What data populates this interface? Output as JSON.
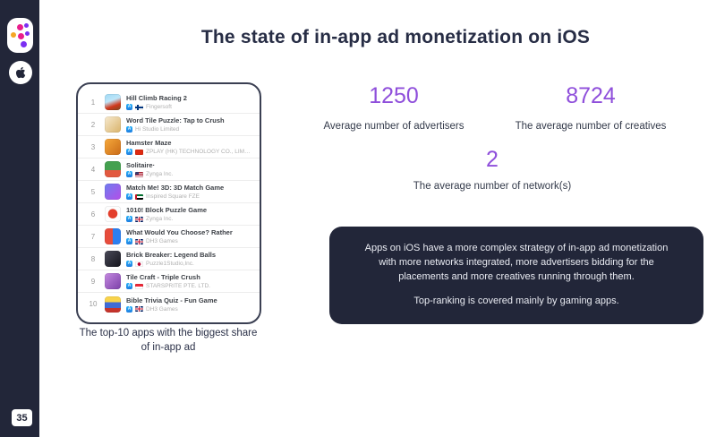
{
  "sidebar": {
    "page_number": "35"
  },
  "header": {
    "title": "The state of in-app ad monetization on iOS"
  },
  "app_list": {
    "caption": "The top-10 apps with the biggest share of in-app ad",
    "items": [
      {
        "rank": "1",
        "name": "Hill Climb Racing 2",
        "publisher": "Fingersoft",
        "flag": "finland",
        "icon_bg": "linear-gradient(160deg,#9ed8f4 0%,#bfe6f9 40%,#d0381b 70%,#7a4a21 100%)"
      },
      {
        "rank": "2",
        "name": "Word Tile Puzzle: Tap to Crush",
        "publisher": "Hi Studio Limited",
        "flag": "",
        "icon_bg": "linear-gradient(135deg,#f7ead0,#d9b36a)"
      },
      {
        "rank": "3",
        "name": "Hamster Maze",
        "publisher": "ZPLAY (HK) TECHNOLOGY CO., LIMITED",
        "flag": "china",
        "icon_bg": "linear-gradient(135deg,#f6a93c,#c96a16)"
      },
      {
        "rank": "4",
        "name": "Solitaire·",
        "publisher": "Zynga Inc.",
        "flag": "usa",
        "icon_bg": "linear-gradient(180deg,#44a04f 55%,#e2593f 55%)"
      },
      {
        "rank": "5",
        "name": "Match Me! 3D: 3D Match Game",
        "publisher": "Inspired Square FZE",
        "flag": "uae",
        "icon_bg": "linear-gradient(135deg,#6f7df0,#b44ee8)"
      },
      {
        "rank": "6",
        "name": "1010! Block Puzzle Game",
        "publisher": "Zynga Inc.",
        "flag": "uk",
        "icon_bg": "radial-gradient(circle at 50% 48%, #e33e2b 0 5px, #fdfdfd 5.5px)"
      },
      {
        "rank": "7",
        "name": "What Would You Choose? Rather",
        "publisher": "DH3 Games",
        "flag": "uk",
        "icon_bg": "linear-gradient(90deg,#e74c3c 50%,#2d7ff0 50%)"
      },
      {
        "rank": "8",
        "name": "Brick Breaker: Legend Balls",
        "publisher": "Puzzle1Studio,Inc.",
        "flag": "japan",
        "icon_bg": "linear-gradient(135deg,#4a4a58,#15151d)"
      },
      {
        "rank": "9",
        "name": "Tile Craft - Triple Crush",
        "publisher": "STARSPRITE PTE. LTD.",
        "flag": "singapore",
        "icon_bg": "linear-gradient(135deg,#c58ae0,#7b3fa8)"
      },
      {
        "rank": "10",
        "name": "Bible Trivia Quiz - Fun Game",
        "publisher": "DH3 Games",
        "flag": "uk",
        "icon_bg": "linear-gradient(180deg,#f8d34b 35%,#3f6bd6 35%,#3f6bd6 72%,#c5342c 72%)"
      }
    ]
  },
  "stats": [
    {
      "value": "1250",
      "label": "Average number of advertisers"
    },
    {
      "value": "8724",
      "label": "The average number of creatives"
    },
    {
      "value": "2",
      "label": "The average number of network(s)"
    }
  ],
  "insight_box": {
    "paragraph1": "Apps on iOS have a more complex strategy of in-app ad monetization with more networks integrated, more advertisers bidding for the placements and more creatives running through them.",
    "paragraph2": "Top-ranking is covered mainly by gaming apps."
  },
  "colors": {
    "accent_purple": "#8f4fdb",
    "dark_navy": "#222639"
  }
}
